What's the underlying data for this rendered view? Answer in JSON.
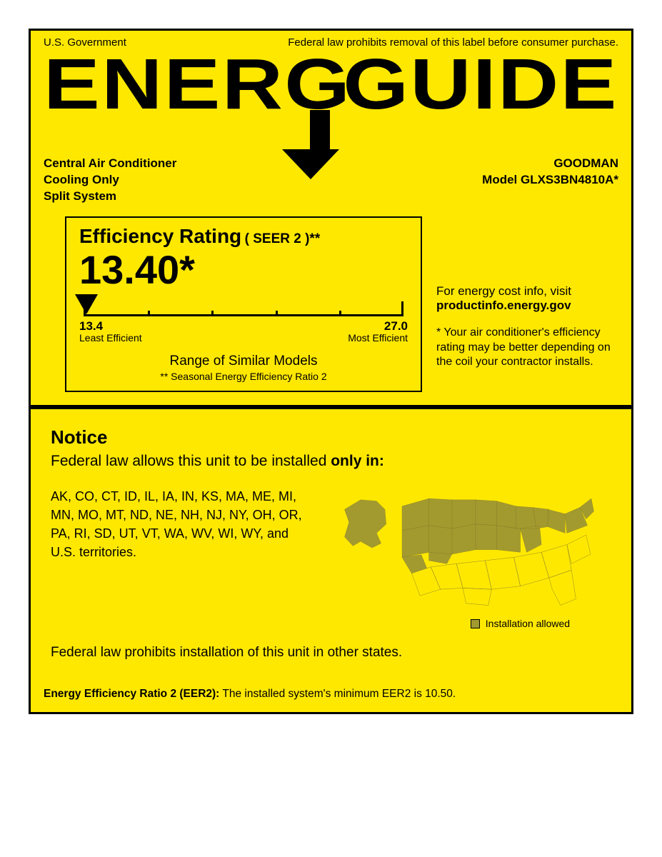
{
  "colors": {
    "background": "#ffe800",
    "border": "#000000",
    "text": "#000000",
    "map_allowed": "#a39a2f",
    "map_not_allowed": "#ffe800"
  },
  "header": {
    "gov": "U.S. Government",
    "law": "Federal law prohibits removal of this label before consumer purchase.",
    "brand_left": "ENERG",
    "brand_right": "GUIDE"
  },
  "meta": {
    "line1": "Central Air Conditioner",
    "line2": "Cooling Only",
    "line3": "Split System",
    "mfr": "GOODMAN",
    "model": "Model GLXS3BN4810A*"
  },
  "rating": {
    "title": "Efficiency Rating",
    "title_sub": "( SEER 2 )**",
    "value": "13.40*",
    "scale": {
      "min": 13.4,
      "max": 27.0,
      "min_label": "13.4",
      "max_label": "27.0",
      "min_sub": "Least Efficient",
      "max_sub": "Most Efficient",
      "ticks_minor": [
        0.2,
        0.4,
        0.6,
        0.8
      ],
      "pointer_frac": 0.0
    },
    "range_caption": "Range of Similar Models",
    "range_note": "** Seasonal Energy Efficiency Ratio 2"
  },
  "side": {
    "lead": "For energy cost info, visit",
    "url": "productinfo.energy.gov",
    "disclaimer": "*  Your air conditioner's efficiency rating may be better depending on the coil your contractor installs."
  },
  "notice": {
    "title": "Notice",
    "lead_pre": "Federal law allows this unit to be installed ",
    "lead_bold": "only in:",
    "states": "AK, CO, CT, ID, IL, IA, IN, KS, MA, ME, MI, MN, MO, MT, ND, NE, NH, NJ, NY, OH, OR, PA, RI, SD, UT, VT, WA, WV, WI, WY, and U.S. territories.",
    "legend": "Installation allowed",
    "foot": "Federal law prohibits installation of this unit in other states."
  },
  "eer": {
    "label": "Energy Efficiency Ratio 2 (EER2):",
    "text": " The installed system's minimum EER2 is 10.50."
  },
  "map": {
    "allowed_states": [
      "AK",
      "CO",
      "CT",
      "ID",
      "IL",
      "IA",
      "IN",
      "KS",
      "MA",
      "ME",
      "MI",
      "MN",
      "MO",
      "MT",
      "ND",
      "NE",
      "NH",
      "NJ",
      "NY",
      "OH",
      "OR",
      "PA",
      "RI",
      "SD",
      "UT",
      "VT",
      "WA",
      "WV",
      "WI",
      "WY"
    ]
  }
}
